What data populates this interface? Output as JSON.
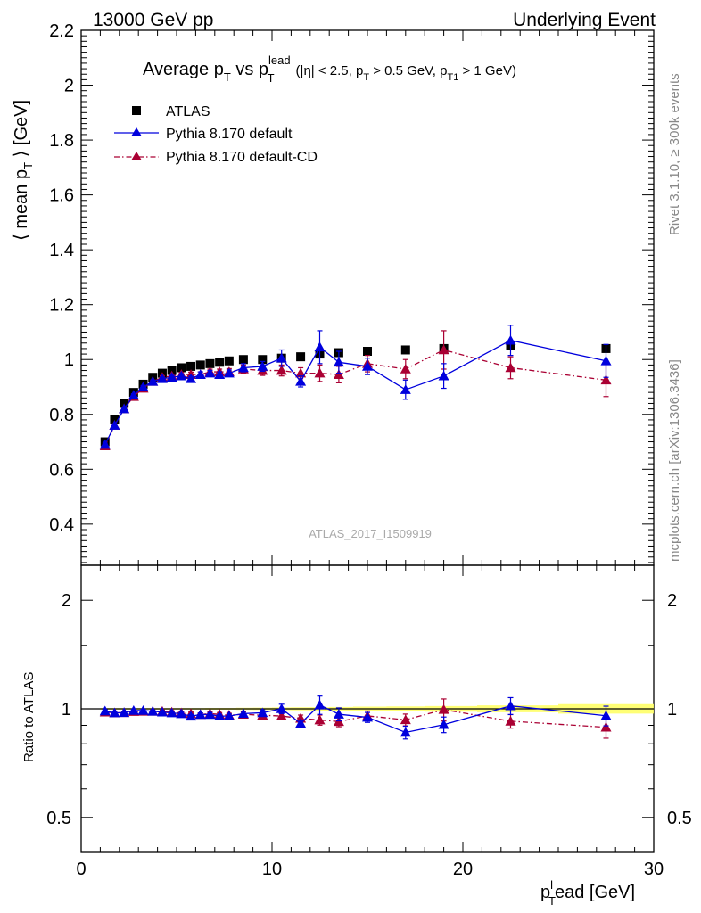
{
  "header": {
    "left": "13000 GeV pp",
    "right": "Underlying Event"
  },
  "title": {
    "main_a": "Average p",
    "main_sub": "T",
    "main_b": " vs p",
    "lead_sup": "lead",
    "lead_sub": "T",
    "cuts_a": "(|η| < 2.5, p",
    "cuts_sub1": "T",
    "cuts_b": " > 0.5 GeV, p",
    "cuts_sub2": "T1",
    "cuts_c": " > 1 GeV)"
  },
  "side_text": {
    "rivet": "Rivet 3.1.10, ≥ 300k events",
    "mcplots": "mcplots.cern.ch [arXiv:1306.3436]"
  },
  "watermark": "ATLAS_2017_I1509919",
  "colors": {
    "atlas": "#000000",
    "default": "#0000dd",
    "cd": "#aa0033",
    "band": "#ffff66"
  },
  "chart_data": [
    {
      "type": "scatter",
      "panel": "main",
      "ylabel_a": "⟨ mean p",
      "ylabel_sub": "T",
      "ylabel_b": " ⟩ [GeV]",
      "xlim": [
        0,
        30
      ],
      "ylim": [
        0.25,
        2.2
      ],
      "yticks": [
        "0.4",
        "0.6",
        "0.8",
        "1",
        "1.2",
        "1.4",
        "1.6",
        "1.8",
        "2",
        "2.2"
      ],
      "legend_position": "top-left",
      "x": [
        1.25,
        1.75,
        2.25,
        2.75,
        3.25,
        3.75,
        4.25,
        4.75,
        5.25,
        5.75,
        6.25,
        6.75,
        7.25,
        7.75,
        8.5,
        9.5,
        10.5,
        11.5,
        12.5,
        13.5,
        15.0,
        17.0,
        19.0,
        22.5,
        27.5
      ],
      "series": [
        {
          "name": "ATLAS",
          "marker": "square",
          "values": [
            0.7,
            0.78,
            0.84,
            0.88,
            0.91,
            0.935,
            0.95,
            0.96,
            0.97,
            0.975,
            0.98,
            0.985,
            0.99,
            0.995,
            1.0,
            1.0,
            1.005,
            1.01,
            1.02,
            1.025,
            1.03,
            1.035,
            1.04,
            1.05,
            1.04
          ]
        },
        {
          "name": "Pythia 8.170 default",
          "marker": "triangle",
          "values": [
            0.69,
            0.76,
            0.82,
            0.87,
            0.9,
            0.92,
            0.93,
            0.935,
            0.94,
            0.93,
            0.945,
            0.95,
            0.945,
            0.95,
            0.97,
            0.975,
            1.005,
            0.92,
            1.045,
            0.99,
            0.975,
            0.89,
            0.94,
            1.07,
            0.995
          ],
          "errors": [
            0.005,
            0.005,
            0.005,
            0.005,
            0.005,
            0.005,
            0.006,
            0.007,
            0.008,
            0.009,
            0.01,
            0.01,
            0.01,
            0.012,
            0.015,
            0.018,
            0.03,
            0.02,
            0.06,
            0.04,
            0.03,
            0.035,
            0.045,
            0.055,
            0.06
          ]
        },
        {
          "name": "Pythia 8.170 default-CD",
          "marker": "triangle",
          "values": [
            0.685,
            0.76,
            0.82,
            0.865,
            0.895,
            0.92,
            0.935,
            0.94,
            0.945,
            0.945,
            0.945,
            0.955,
            0.955,
            0.955,
            0.965,
            0.96,
            0.96,
            0.95,
            0.95,
            0.945,
            0.985,
            0.965,
            1.035,
            0.97,
            0.925
          ],
          "errors": [
            0.005,
            0.005,
            0.005,
            0.005,
            0.005,
            0.005,
            0.006,
            0.007,
            0.008,
            0.009,
            0.01,
            0.01,
            0.01,
            0.012,
            0.015,
            0.018,
            0.02,
            0.02,
            0.03,
            0.03,
            0.03,
            0.035,
            0.07,
            0.04,
            0.06
          ]
        }
      ]
    },
    {
      "type": "scatter",
      "panel": "ratio",
      "ylabel": "Ratio to ATLAS",
      "xlabel_a": "p",
      "xlabel_sup": "l",
      "xlabel_sub": "T",
      "xlabel_b": "ead [GeV]",
      "xlim": [
        0,
        30
      ],
      "ylim": [
        0.4,
        2.5
      ],
      "yscale": "log",
      "xticks": [
        "0",
        "10",
        "20",
        "30"
      ],
      "yticks": [
        "0.5",
        "1",
        "2"
      ],
      "reference": 1.0,
      "reference_band_relerr": [
        0.005,
        0.005,
        0.005,
        0.005,
        0.005,
        0.005,
        0.005,
        0.005,
        0.005,
        0.005,
        0.005,
        0.006,
        0.006,
        0.006,
        0.007,
        0.008,
        0.009,
        0.01,
        0.011,
        0.012,
        0.014,
        0.016,
        0.018,
        0.022,
        0.03
      ],
      "x": [
        1.25,
        1.75,
        2.25,
        2.75,
        3.25,
        3.75,
        4.25,
        4.75,
        5.25,
        5.75,
        6.25,
        6.75,
        7.25,
        7.75,
        8.5,
        9.5,
        10.5,
        11.5,
        12.5,
        13.5,
        15.0,
        17.0,
        19.0,
        22.5,
        27.5
      ],
      "series": [
        {
          "name": "Pythia 8.170 default",
          "values": [
            0.986,
            0.974,
            0.976,
            0.989,
            0.989,
            0.984,
            0.979,
            0.974,
            0.969,
            0.954,
            0.964,
            0.964,
            0.955,
            0.955,
            0.97,
            0.975,
            1.0,
            0.911,
            1.025,
            0.966,
            0.947,
            0.86,
            0.904,
            1.019,
            0.957
          ],
          "errors": [
            0.008,
            0.008,
            0.008,
            0.008,
            0.008,
            0.008,
            0.008,
            0.008,
            0.009,
            0.01,
            0.01,
            0.011,
            0.011,
            0.012,
            0.015,
            0.018,
            0.03,
            0.02,
            0.06,
            0.04,
            0.03,
            0.035,
            0.045,
            0.055,
            0.06
          ]
        },
        {
          "name": "Pythia 8.170 default-CD",
          "values": [
            0.979,
            0.974,
            0.976,
            0.983,
            0.984,
            0.984,
            0.984,
            0.979,
            0.974,
            0.969,
            0.964,
            0.97,
            0.965,
            0.96,
            0.965,
            0.96,
            0.955,
            0.941,
            0.931,
            0.922,
            0.956,
            0.932,
            0.995,
            0.924,
            0.889
          ],
          "errors": [
            0.008,
            0.008,
            0.008,
            0.008,
            0.008,
            0.008,
            0.008,
            0.008,
            0.009,
            0.01,
            0.01,
            0.011,
            0.011,
            0.012,
            0.015,
            0.018,
            0.02,
            0.02,
            0.03,
            0.03,
            0.03,
            0.035,
            0.07,
            0.04,
            0.06
          ]
        }
      ]
    }
  ]
}
